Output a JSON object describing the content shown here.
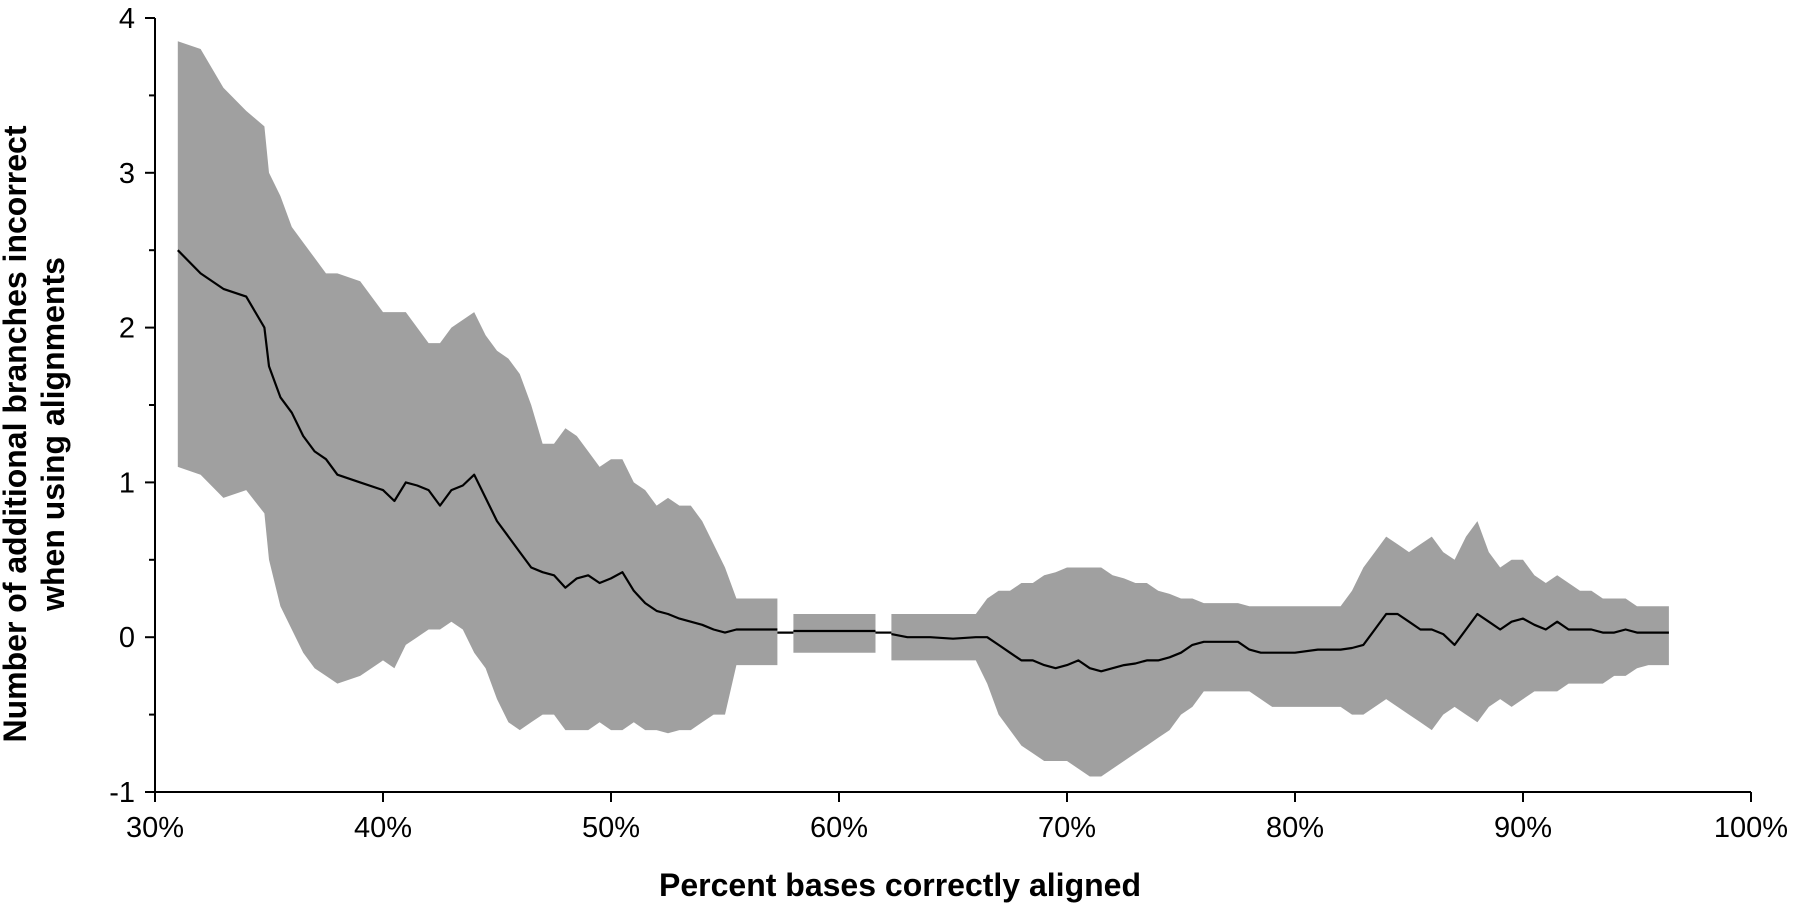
{
  "chart_data": {
    "type": "area",
    "title": "",
    "xlabel": "Percent bases correctly aligned",
    "ylabel_lines": [
      "Number of additional branches incorrect",
      "when using alignments"
    ],
    "xlim": [
      30,
      100
    ],
    "ylim": [
      -1,
      4
    ],
    "x_ticks": [
      30,
      40,
      50,
      60,
      70,
      80,
      90,
      100
    ],
    "x_tick_labels": [
      "30%",
      "40%",
      "50%",
      "60%",
      "70%",
      "80%",
      "90%",
      "100%"
    ],
    "y_ticks": [
      -1,
      0,
      1,
      2,
      3,
      4
    ],
    "y_tick_labels": [
      "-1",
      "0",
      "1",
      "2",
      "3",
      "4"
    ],
    "y_minor_ticks": [
      -0.5,
      0.5,
      1.5,
      2.5,
      3.5
    ],
    "grid": false,
    "legend": "none",
    "colors": {
      "band": "#a0a0a0",
      "line": "#000000",
      "axis": "#000000"
    },
    "series": [
      {
        "segments": [
          {
            "x": [
              31.0,
              32.0,
              33.0,
              34.0,
              34.8,
              35.0,
              35.5,
              36.0,
              36.5,
              37.0,
              37.5,
              38.0,
              39.0,
              40.0,
              40.5,
              41.0,
              41.5,
              42.0,
              42.5,
              43.0,
              43.5,
              44.0,
              44.5,
              45.0,
              45.5,
              46.0,
              46.5,
              47.0,
              47.5,
              48.0,
              48.5,
              49.0,
              49.5,
              50.0,
              50.5,
              51.0,
              51.5,
              52.0,
              52.5,
              53.0,
              53.5,
              54.0,
              54.5,
              55.0,
              55.5,
              56.0,
              57.0,
              57.3
            ],
            "mean": [
              2.5,
              2.35,
              2.25,
              2.2,
              2.0,
              1.75,
              1.55,
              1.45,
              1.3,
              1.2,
              1.15,
              1.05,
              1.0,
              0.95,
              0.88,
              1.0,
              0.98,
              0.95,
              0.85,
              0.95,
              0.98,
              1.05,
              0.9,
              0.75,
              0.65,
              0.55,
              0.45,
              0.42,
              0.4,
              0.32,
              0.38,
              0.4,
              0.35,
              0.38,
              0.42,
              0.3,
              0.22,
              0.17,
              0.15,
              0.12,
              0.1,
              0.08,
              0.05,
              0.03,
              0.05,
              0.05,
              0.05,
              0.05
            ],
            "upper": [
              3.85,
              3.8,
              3.55,
              3.4,
              3.3,
              3.0,
              2.85,
              2.65,
              2.55,
              2.45,
              2.35,
              2.35,
              2.3,
              2.1,
              2.1,
              2.1,
              2.0,
              1.9,
              1.9,
              2.0,
              2.05,
              2.1,
              1.95,
              1.85,
              1.8,
              1.7,
              1.5,
              1.25,
              1.25,
              1.35,
              1.3,
              1.2,
              1.1,
              1.15,
              1.15,
              1.0,
              0.95,
              0.85,
              0.9,
              0.85,
              0.85,
              0.75,
              0.6,
              0.45,
              0.25,
              0.25,
              0.25,
              0.25
            ],
            "lower": [
              1.1,
              1.05,
              0.9,
              0.95,
              0.8,
              0.5,
              0.2,
              0.05,
              -0.1,
              -0.2,
              -0.25,
              -0.3,
              -0.25,
              -0.15,
              -0.2,
              -0.05,
              0.0,
              0.05,
              0.05,
              0.1,
              0.05,
              -0.1,
              -0.2,
              -0.4,
              -0.55,
              -0.6,
              -0.55,
              -0.5,
              -0.5,
              -0.6,
              -0.6,
              -0.6,
              -0.55,
              -0.6,
              -0.6,
              -0.55,
              -0.6,
              -0.6,
              -0.62,
              -0.6,
              -0.6,
              -0.55,
              -0.5,
              -0.5,
              -0.18,
              -0.18,
              -0.18,
              -0.18
            ]
          },
          {
            "x": [
              57.3,
              58.0
            ],
            "mean": [
              0.03,
              0.03
            ],
            "upper": [
              0.03,
              0.03
            ],
            "lower": [
              0.03,
              0.03
            ]
          },
          {
            "x": [
              58.0,
              59.0,
              60.0,
              61.0,
              61.6
            ],
            "mean": [
              0.04,
              0.04,
              0.04,
              0.04,
              0.04
            ],
            "upper": [
              0.15,
              0.15,
              0.15,
              0.15,
              0.15
            ],
            "lower": [
              -0.1,
              -0.1,
              -0.1,
              -0.1,
              -0.1
            ]
          },
          {
            "x": [
              61.6,
              62.3
            ],
            "mean": [
              0.03,
              0.03
            ],
            "upper": [
              0.03,
              0.03
            ],
            "lower": [
              0.03,
              0.03
            ]
          },
          {
            "x": [
              62.3,
              63.0,
              64.0,
              65.0,
              66.0,
              66.5,
              67.0,
              67.5,
              68.0,
              68.5,
              69.0,
              69.5,
              70.0,
              70.5,
              71.0,
              71.5,
              72.0,
              72.5,
              73.0,
              73.5,
              74.0,
              74.5,
              75.0,
              75.5,
              76.0,
              76.5,
              77.0,
              77.5,
              78.0,
              78.5,
              79.0,
              80.0,
              81.0,
              82.0,
              82.5,
              83.0,
              83.5,
              84.0,
              84.5,
              85.0,
              85.5,
              86.0,
              86.5,
              87.0,
              87.5,
              88.0,
              88.5,
              89.0,
              89.5,
              90.0,
              90.5,
              91.0,
              91.5,
              92.0,
              92.5,
              93.0,
              93.5,
              94.0,
              94.5,
              95.0,
              95.5,
              96.0,
              96.4
            ],
            "mean": [
              0.02,
              0.0,
              0.0,
              -0.01,
              0.0,
              0.0,
              -0.05,
              -0.1,
              -0.15,
              -0.15,
              -0.18,
              -0.2,
              -0.18,
              -0.15,
              -0.2,
              -0.22,
              -0.2,
              -0.18,
              -0.17,
              -0.15,
              -0.15,
              -0.13,
              -0.1,
              -0.05,
              -0.03,
              -0.03,
              -0.03,
              -0.03,
              -0.08,
              -0.1,
              -0.1,
              -0.1,
              -0.08,
              -0.08,
              -0.07,
              -0.05,
              0.05,
              0.15,
              0.15,
              0.1,
              0.05,
              0.05,
              0.02,
              -0.05,
              0.05,
              0.15,
              0.1,
              0.05,
              0.1,
              0.12,
              0.08,
              0.05,
              0.1,
              0.05,
              0.05,
              0.05,
              0.03,
              0.03,
              0.05,
              0.03,
              0.03,
              0.03,
              0.03
            ],
            "upper": [
              0.15,
              0.15,
              0.15,
              0.15,
              0.15,
              0.25,
              0.3,
              0.3,
              0.35,
              0.35,
              0.4,
              0.42,
              0.45,
              0.45,
              0.45,
              0.45,
              0.4,
              0.38,
              0.35,
              0.35,
              0.3,
              0.28,
              0.25,
              0.25,
              0.22,
              0.22,
              0.22,
              0.22,
              0.2,
              0.2,
              0.2,
              0.2,
              0.2,
              0.2,
              0.3,
              0.45,
              0.55,
              0.65,
              0.6,
              0.55,
              0.6,
              0.65,
              0.55,
              0.5,
              0.65,
              0.75,
              0.55,
              0.45,
              0.5,
              0.5,
              0.4,
              0.35,
              0.4,
              0.35,
              0.3,
              0.3,
              0.25,
              0.25,
              0.25,
              0.2,
              0.2,
              0.2,
              0.2
            ],
            "lower": [
              -0.15,
              -0.15,
              -0.15,
              -0.15,
              -0.15,
              -0.3,
              -0.5,
              -0.6,
              -0.7,
              -0.75,
              -0.8,
              -0.8,
              -0.8,
              -0.85,
              -0.9,
              -0.9,
              -0.85,
              -0.8,
              -0.75,
              -0.7,
              -0.65,
              -0.6,
              -0.5,
              -0.45,
              -0.35,
              -0.35,
              -0.35,
              -0.35,
              -0.35,
              -0.4,
              -0.45,
              -0.45,
              -0.45,
              -0.45,
              -0.5,
              -0.5,
              -0.45,
              -0.4,
              -0.45,
              -0.5,
              -0.55,
              -0.6,
              -0.5,
              -0.45,
              -0.5,
              -0.55,
              -0.45,
              -0.4,
              -0.45,
              -0.4,
              -0.35,
              -0.35,
              -0.35,
              -0.3,
              -0.3,
              -0.3,
              -0.3,
              -0.25,
              -0.25,
              -0.2,
              -0.18,
              -0.18,
              -0.18
            ]
          }
        ]
      }
    ]
  }
}
